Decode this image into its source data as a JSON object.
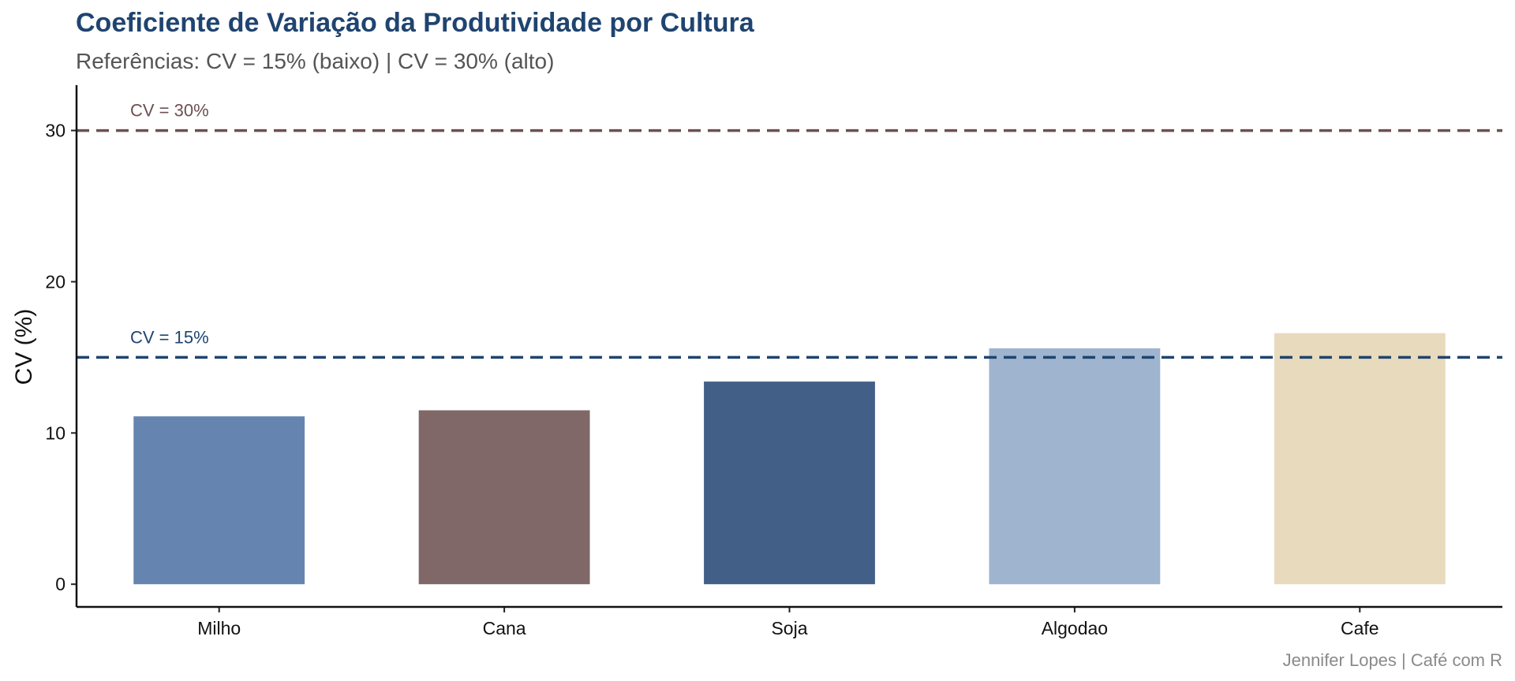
{
  "chart_data": {
    "type": "bar",
    "title": "Coeficiente de Variação da Produtividade por Cultura",
    "subtitle": "Referências: CV = 15% (baixo) | CV = 30% (alto)",
    "ylabel": "CV (%)",
    "xlabel": "",
    "categories": [
      "Milho",
      "Cana",
      "Soja",
      "Algodao",
      "Cafe"
    ],
    "values": [
      11.1,
      11.5,
      13.4,
      15.6,
      16.6
    ],
    "bar_colors": [
      "#6684b0",
      "#806868",
      "#426087",
      "#9fb4ce",
      "#e8dabc"
    ],
    "ylim": [
      -1.5,
      33
    ],
    "yticks": [
      0,
      10,
      20,
      30
    ],
    "reference_lines": [
      {
        "value": 30,
        "label": "CV = 30%",
        "color": "#6e5050"
      },
      {
        "value": 15,
        "label": "CV = 15%",
        "color": "#1f4470"
      }
    ],
    "grid": false,
    "legend": "none",
    "caption": "Jennifer Lopes | Café com R"
  }
}
